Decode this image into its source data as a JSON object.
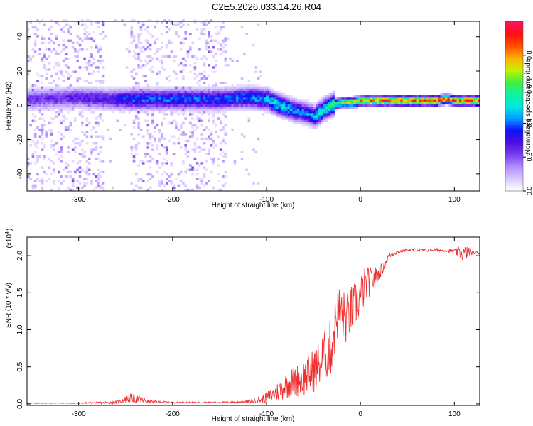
{
  "title": "C2E5.2026.033.14.26.R04",
  "chart_data": [
    {
      "type": "heatmap",
      "xlabel": "Height of straight line (km)",
      "ylabel": "Frequency (Hz)",
      "xlim": [
        -355,
        127
      ],
      "ylim": [
        -50,
        49
      ],
      "xticks": [
        -300,
        -200,
        -100,
        0,
        100
      ],
      "yticks": [
        -40,
        -20,
        0,
        20,
        40
      ],
      "xtick_labels": [
        "-300",
        "-200",
        "-100",
        "0",
        "100"
      ],
      "ytick_labels": [
        "-40",
        "-20",
        "0",
        "20",
        "40"
      ],
      "ridge": {
        "x": [
          -355,
          -300,
          -270,
          -250,
          -200,
          -150,
          -120,
          -100,
          -90,
          -80,
          -70,
          -60,
          -50,
          -45,
          -40,
          -30,
          -20,
          -10,
          0,
          20,
          50,
          80,
          90,
          100,
          127
        ],
        "freq": [
          3,
          4,
          3,
          3,
          3,
          3,
          4,
          3,
          0,
          -2,
          -4,
          -5,
          -7,
          -5,
          -3,
          0,
          1,
          1,
          2,
          2,
          2,
          2,
          3,
          2,
          2
        ],
        "amplitude": [
          0.25,
          0.28,
          0.32,
          0.4,
          0.42,
          0.4,
          0.45,
          0.5,
          0.55,
          0.5,
          0.45,
          0.45,
          0.5,
          0.6,
          0.55,
          0.6,
          0.75,
          0.78,
          0.85,
          0.95,
          0.98,
          0.97,
          0.98,
          0.97,
          0.97
        ]
      },
      "noise_regions": [
        [
          -355,
          -275
        ],
        [
          -245,
          -145
        ]
      ]
    },
    {
      "type": "line",
      "xlabel": "Height of straight line (km)",
      "ylabel": "SNR (10 * v/v)",
      "y_exponent_label": "(x10",
      "y_exponent_power": "4",
      "xlim": [
        -355,
        127
      ],
      "ylim": [
        -0.02,
        2.25
      ],
      "xticks": [
        -300,
        -200,
        -100,
        0,
        100
      ],
      "yticks": [
        0.0,
        0.5,
        1.0,
        1.5,
        2.0
      ],
      "xtick_labels": [
        "-300",
        "-200",
        "-100",
        "0",
        "100"
      ],
      "ytick_labels": [
        "0.0",
        "0.5",
        "1.0",
        "1.5",
        "2.0"
      ],
      "series": [
        {
          "name": "SNR",
          "color": "#ee3030",
          "x": [
            -355,
            -300,
            -260,
            -245,
            -235,
            -225,
            -200,
            -150,
            -120,
            -105,
            -90,
            -75,
            -60,
            -50,
            -40,
            -30,
            -25,
            -20,
            -15,
            -10,
            -5,
            0,
            5,
            15,
            25,
            30,
            40,
            50,
            60,
            70,
            80,
            90,
            100,
            105,
            110,
            115,
            120,
            127
          ],
          "y": [
            0.01,
            0.01,
            0.02,
            0.08,
            0.06,
            0.03,
            0.02,
            0.02,
            0.03,
            0.06,
            0.15,
            0.28,
            0.35,
            0.45,
            0.6,
            0.8,
            1.25,
            1.2,
            1.15,
            1.25,
            1.35,
            1.45,
            1.6,
            1.7,
            1.85,
            2.0,
            2.05,
            2.08,
            2.08,
            2.07,
            2.08,
            2.07,
            2.06,
            2.04,
            2.02,
            2.06,
            2.04,
            2.04
          ],
          "noise": [
            0.005,
            0.005,
            0.02,
            0.06,
            0.05,
            0.02,
            0.01,
            0.01,
            0.02,
            0.05,
            0.12,
            0.2,
            0.25,
            0.3,
            0.35,
            0.4,
            0.4,
            0.4,
            0.35,
            0.35,
            0.3,
            0.3,
            0.25,
            0.15,
            0.06,
            0.04,
            0.02,
            0.02,
            0.02,
            0.02,
            0.02,
            0.02,
            0.03,
            0.08,
            0.1,
            0.08,
            0.02,
            0.02
          ]
        }
      ]
    }
  ],
  "colorbar": {
    "label": "Normalized spectral amplitude",
    "range": [
      0,
      1
    ],
    "ticks": [
      0.0,
      0.2,
      0.4,
      0.6,
      0.8
    ],
    "tick_labels": [
      "0.0",
      "0.2",
      "0.4",
      "0.6",
      "0.8"
    ],
    "colors": [
      "#ffffff",
      "#d9c8ff",
      "#b08cff",
      "#7a3cf0",
      "#4a10e0",
      "#1010ff",
      "#00a0ff",
      "#00e8e0",
      "#10f0a0",
      "#40f040",
      "#c8f000",
      "#ffb000",
      "#ff5000",
      "#ff1010",
      "#ff1060"
    ]
  }
}
